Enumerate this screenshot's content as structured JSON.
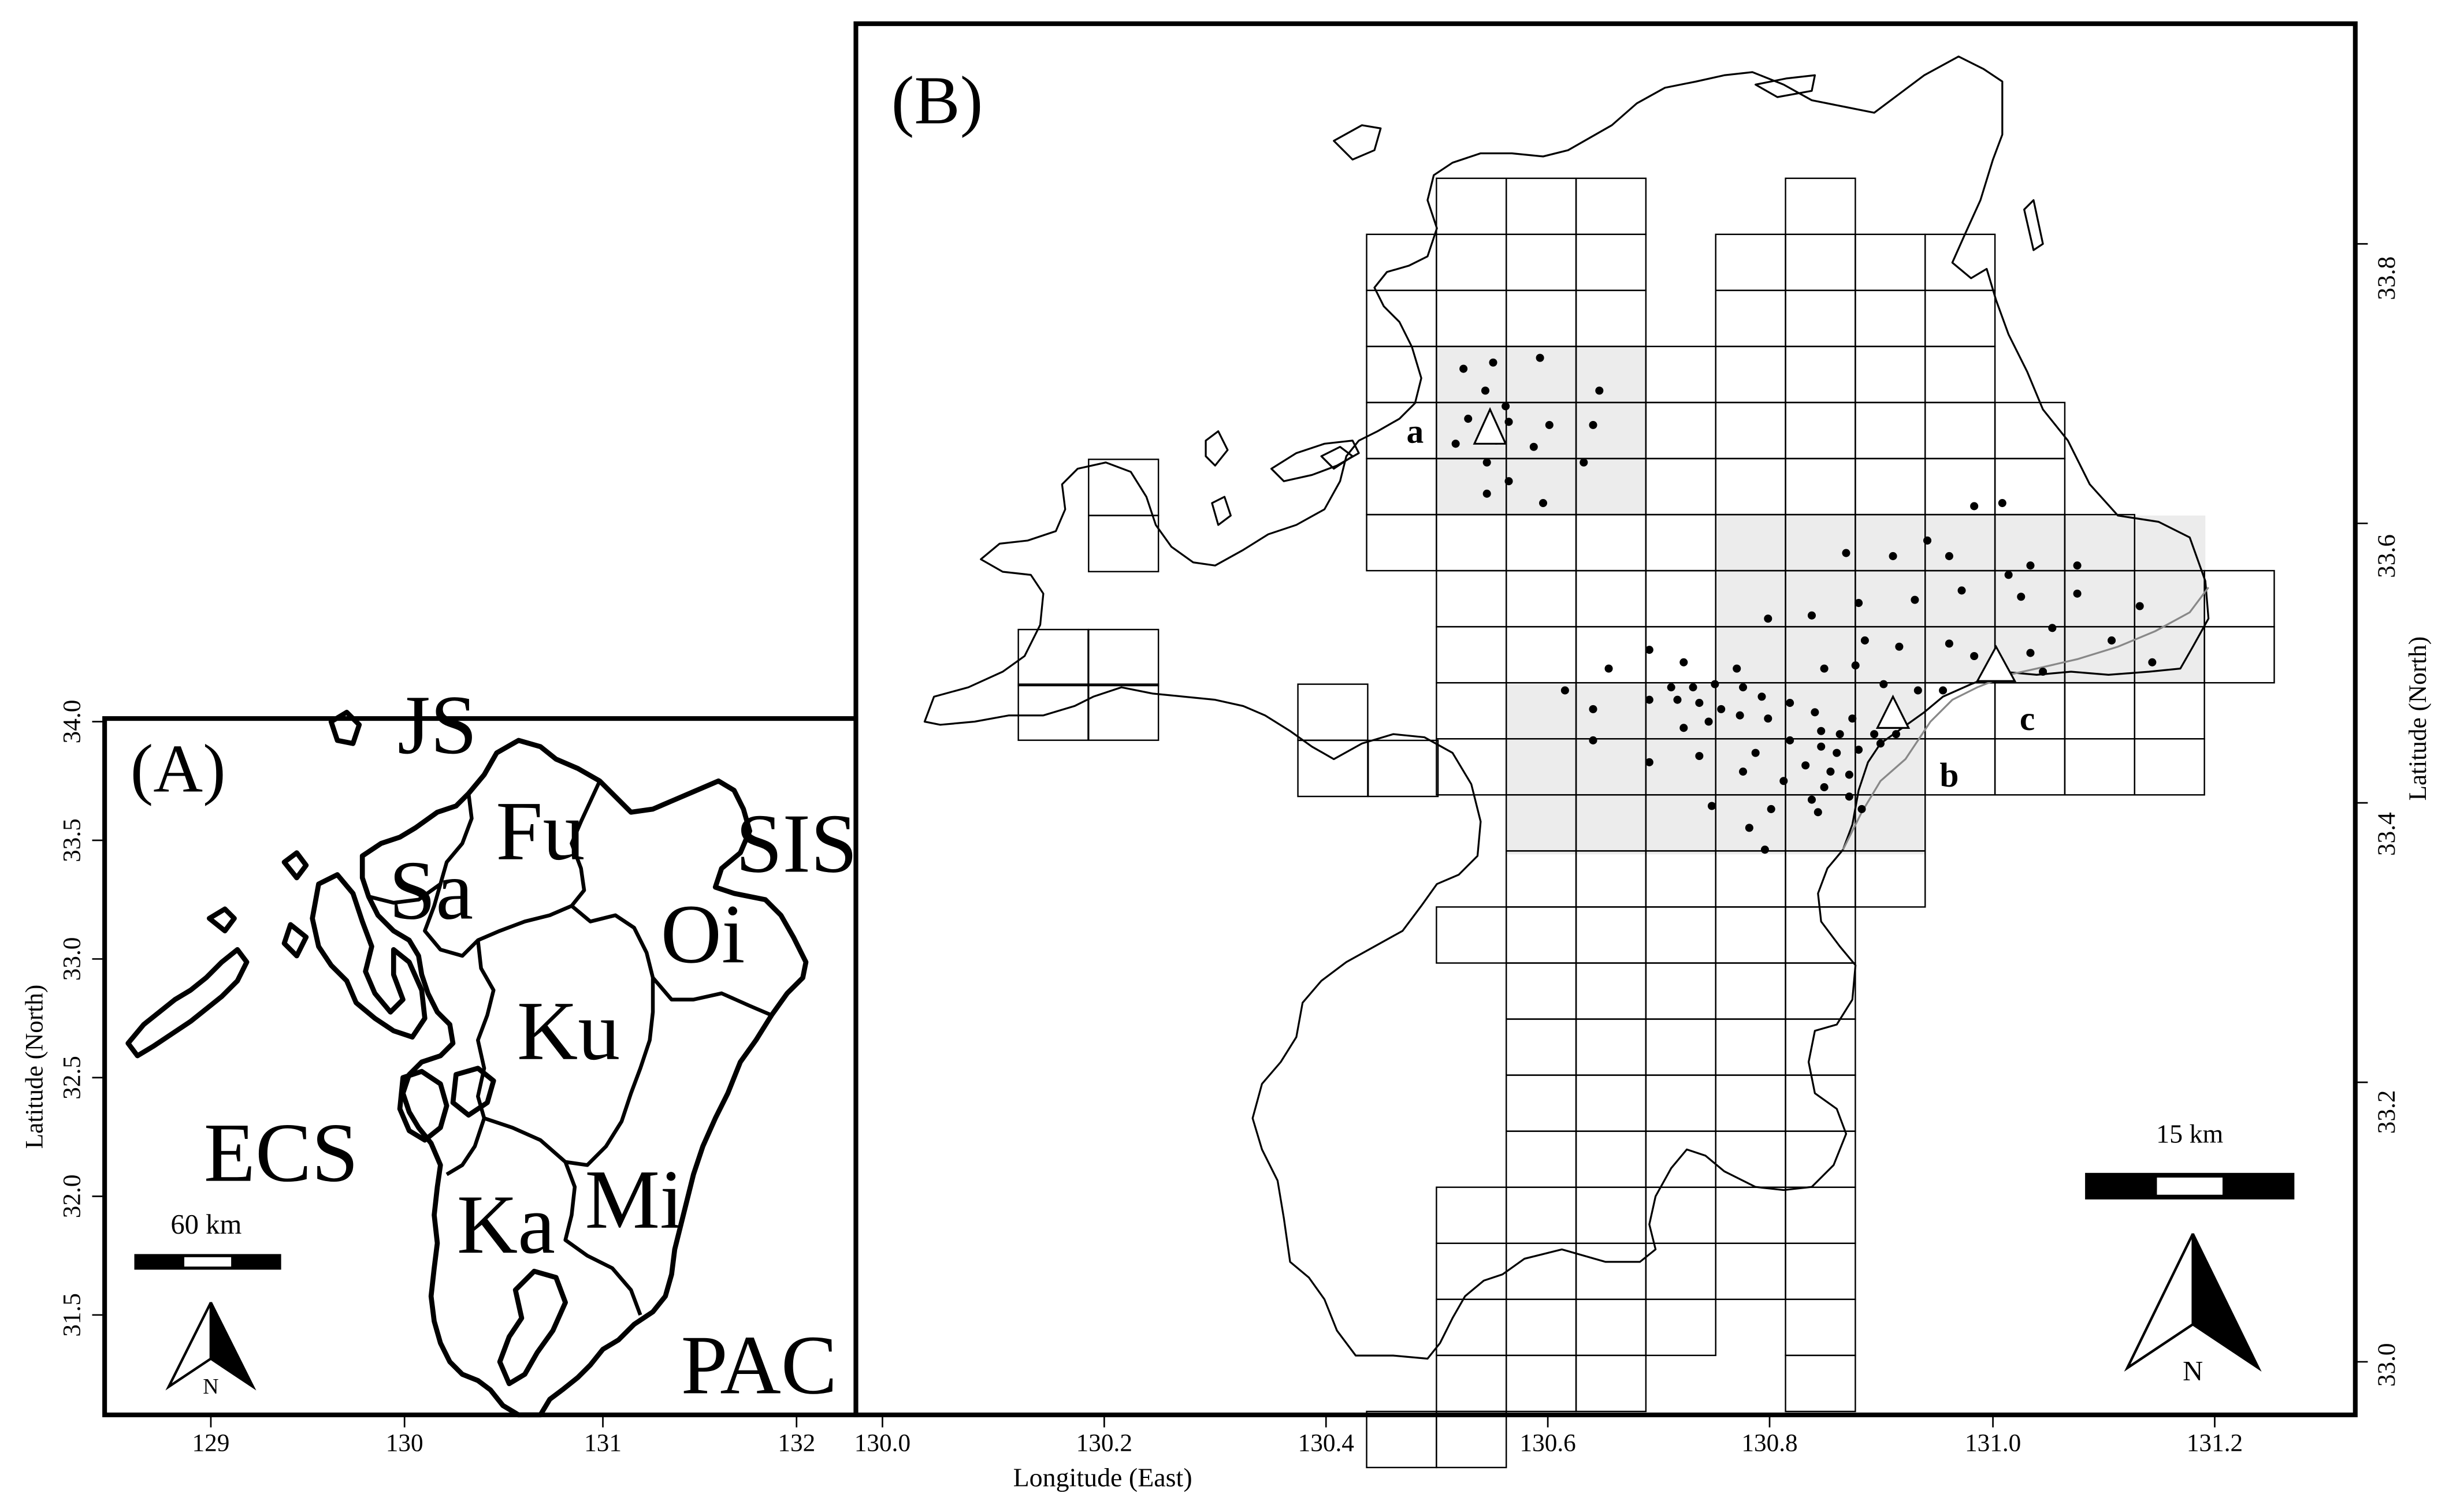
{
  "panel_a": {
    "label": "(A)",
    "regions": {
      "JS": "JS",
      "Fu": "Fu",
      "Sa": "Sa",
      "SIS": "SIS",
      "Oi": "Oi",
      "Ku": "Ku",
      "ECS": "ECS",
      "Mi": "Mi",
      "Ka": "Ka",
      "PAC": "PAC"
    },
    "x_ticks": [
      "129",
      "130",
      "131",
      "132"
    ],
    "y_ticks": [
      "34.0",
      "33.5",
      "33.0",
      "32.5",
      "32.0",
      "31.5"
    ],
    "y_label": "Latitude (North)",
    "scale_label": "60 km",
    "north_label": "N"
  },
  "panel_b": {
    "label": "(B)",
    "x_ticks": [
      "130.0",
      "130.2",
      "130.4",
      "130.6",
      "130.8",
      "131.0",
      "131.2"
    ],
    "y_ticks": [
      "33.8",
      "33.6",
      "33.4",
      "33.2",
      "33.0"
    ],
    "x_label": "Longitude (East)",
    "y_label": "Latitude (North)",
    "scale_label": "15 km",
    "north_label": "N",
    "sites": [
      {
        "id": "a",
        "label": "a",
        "lon": 130.55,
        "lat": 33.69
      },
      {
        "id": "b",
        "label": "b",
        "lon": 130.91,
        "lat": 33.47
      },
      {
        "id": "c",
        "label": "c",
        "lon": 131.0,
        "lat": 33.51
      }
    ]
  },
  "colors": {
    "line": "#000000",
    "shade": "#ececec",
    "background": "#ffffff"
  }
}
